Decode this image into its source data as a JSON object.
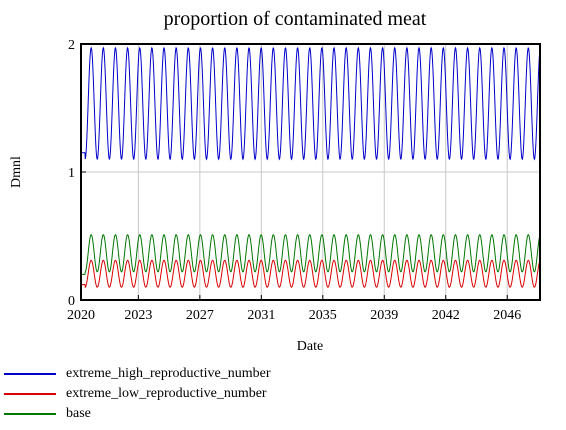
{
  "chart_data": {
    "type": "line",
    "title": "proportion of contaminated meat",
    "xlabel": "Date",
    "ylabel": "Dmnl",
    "xlim": [
      2020,
      2048
    ],
    "ylim": [
      0,
      2
    ],
    "x_ticks": [
      "2020",
      "2023",
      "2027",
      "2031",
      "2035",
      "2039",
      "2042",
      "2046"
    ],
    "x_tick_values": [
      2020,
      2023.5,
      2027.25,
      2031,
      2034.75,
      2038.5,
      2042.25,
      2046
    ],
    "y_ticks": [
      "0",
      "1",
      "2"
    ],
    "y_tick_values": [
      0,
      1,
      2
    ],
    "grid": true,
    "legend_position": "bottom-left",
    "oscillation": {
      "cycles_per_year": 1.35
    },
    "series": [
      {
        "name": "extreme_high_reproductive_number",
        "color": "#0000cc",
        "start": 0.0,
        "initial_peak": 1.15,
        "min": 1.1,
        "max": 1.97
      },
      {
        "name": "extreme_low_reproductive_number",
        "color": "#dd0000",
        "start": 0.0,
        "initial_peak": 0.12,
        "min": 0.1,
        "max": 0.31
      },
      {
        "name": "base",
        "color": "#007700",
        "start": 0.0,
        "initial_peak": 0.2,
        "min": 0.22,
        "max": 0.51
      }
    ]
  }
}
